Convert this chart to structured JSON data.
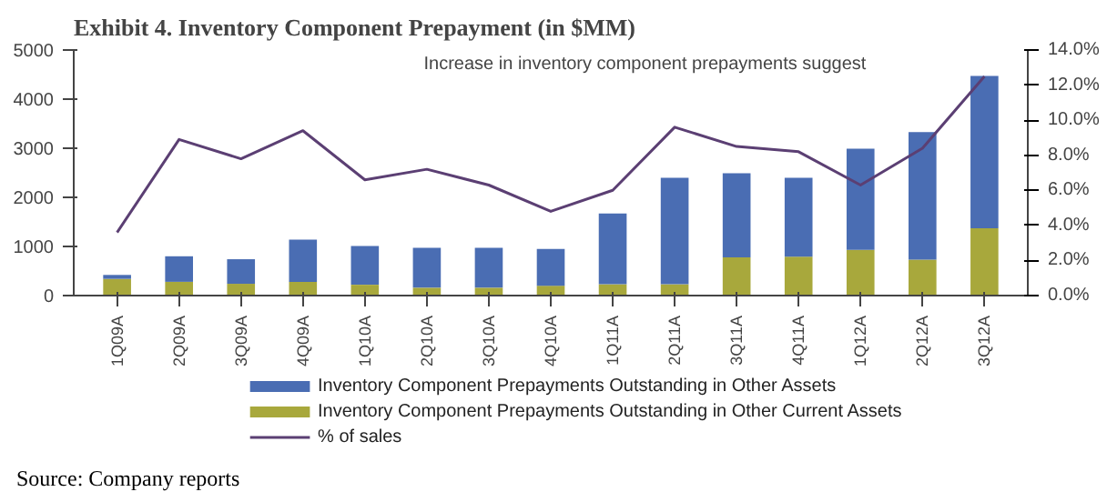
{
  "chart_data": {
    "type": "bar",
    "title": "Exhibit 4. Inventory Component Prepayment (in $MM)",
    "categories": [
      "1Q09A",
      "2Q09A",
      "3Q09A",
      "4Q09A",
      "1Q10A",
      "2Q10A",
      "3Q10A",
      "4Q10A",
      "1Q11A",
      "2Q11A",
      "3Q11A",
      "4Q11A",
      "1Q12A",
      "2Q12A",
      "3Q12A"
    ],
    "stacked": true,
    "series": [
      {
        "name": "Inventory Component Prepayments Outstanding in Other Current Assets",
        "color": "#a8a83c",
        "values": [
          340,
          280,
          240,
          280,
          220,
          160,
          160,
          200,
          230,
          230,
          780,
          790,
          930,
          730,
          1370
        ]
      },
      {
        "name": "Inventory Component Prepayments Outstanding in Other Assets",
        "color": "#4a6db3",
        "values": [
          80,
          520,
          500,
          860,
          790,
          810,
          810,
          750,
          1440,
          2170,
          1710,
          1610,
          2060,
          2600,
          3100
        ]
      },
      {
        "name": "% of sales",
        "type": "line",
        "axis": "y2",
        "color": "#5b3f73",
        "values": [
          3.6,
          8.9,
          7.8,
          9.4,
          6.6,
          7.2,
          6.3,
          4.8,
          6.0,
          9.6,
          8.5,
          8.2,
          6.3,
          8.4,
          12.5
        ]
      }
    ],
    "ylim": [
      0,
      5000
    ],
    "yticks": [
      0,
      1000,
      2000,
      3000,
      4000,
      5000
    ],
    "y2lim": [
      0,
      14
    ],
    "y2ticks": [
      {
        "value": 0,
        "label": "0.0%"
      },
      {
        "value": 2,
        "label": "2.0%"
      },
      {
        "value": 4,
        "label": "4.0%"
      },
      {
        "value": 6,
        "label": "6.0%"
      },
      {
        "value": 8,
        "label": "8.0%"
      },
      {
        "value": 10,
        "label": "10.0%"
      },
      {
        "value": 12,
        "label": "12.0%"
      },
      {
        "value": 14,
        "label": "14.0%"
      }
    ],
    "grid": false,
    "legend": "bottom",
    "annotations": [
      "Increase in inventory component prepayments suggest",
      "Source: Company reports"
    ]
  }
}
